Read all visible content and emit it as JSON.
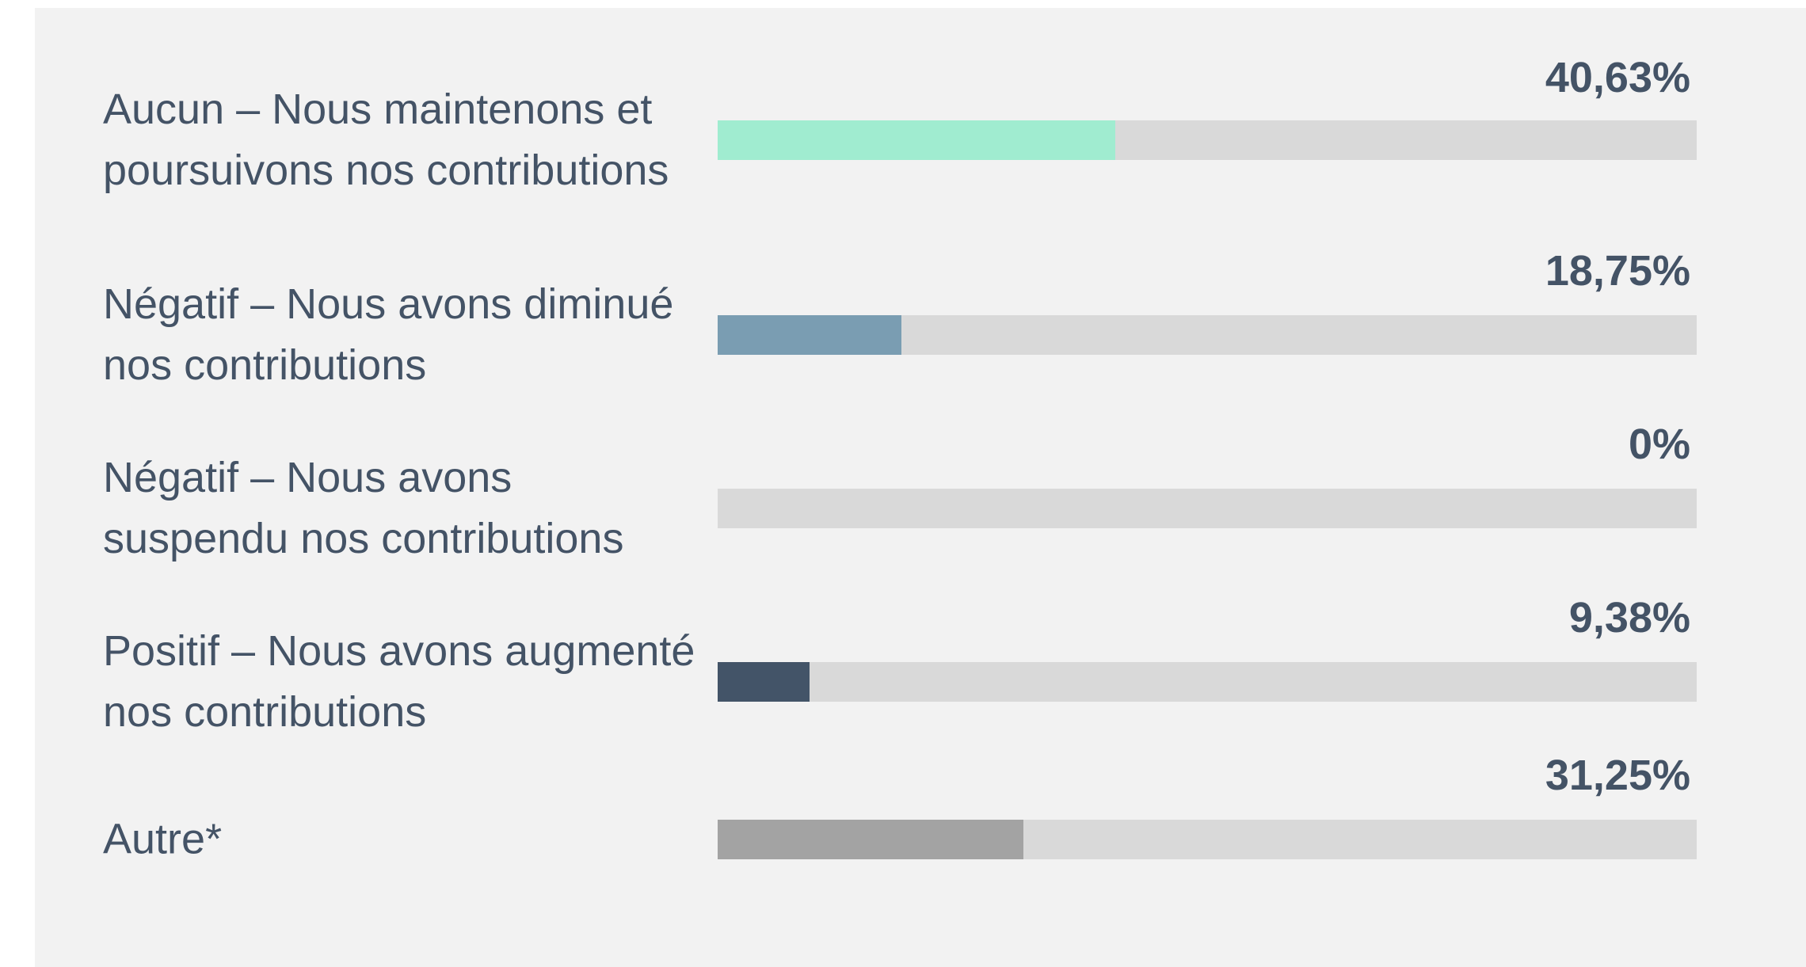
{
  "chart_data": {
    "type": "bar",
    "orientation": "horizontal",
    "categories": [
      "Aucun – Nous maintenons et poursuivons nos contributions",
      "Négatif – Nous avons diminué nos contributions",
      "Négatif – Nous avons suspendu nos contributions",
      "Positif – Nous avons augmenté nos contributions",
      "Autre*"
    ],
    "values": [
      40.63,
      18.75,
      0,
      9.38,
      31.25
    ],
    "value_labels": [
      "40,63%",
      "18,75%",
      "0%",
      "9,38%",
      "31,25%"
    ],
    "colors": [
      "#a0ecd0",
      "#7a9db2",
      "#7a9db2",
      "#435468",
      "#a3a3a3"
    ],
    "xlim": [
      0,
      100
    ]
  }
}
